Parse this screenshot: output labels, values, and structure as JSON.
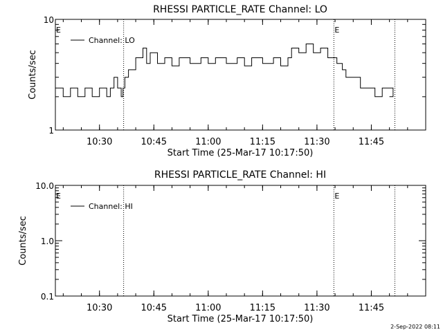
{
  "footer": {
    "timestamp": "2-Sep-2022 08:11"
  },
  "chart_data": [
    {
      "type": "line",
      "title": "RHESSI PARTICLE_RATE Channel: LO",
      "xlabel": "Start Time (25-Mar-17 10:17:50)",
      "ylabel": "Counts/sec",
      "yscale": "log",
      "xlim": [
        "10:17:50",
        "12:00:00"
      ],
      "ylim": [
        1,
        10
      ],
      "x_ticks": [
        "10:30",
        "10:45",
        "11:00",
        "11:15",
        "11:30",
        "11:45"
      ],
      "y_ticks": [
        "1",
        "10"
      ],
      "grid": false,
      "legend": {
        "entries": [
          "Channel: LO"
        ],
        "position": "top-left"
      },
      "markers": [
        {
          "time": "10:17:50",
          "label": "E",
          "line": false
        },
        {
          "time": "10:36:40",
          "label": "",
          "line": true
        },
        {
          "time": "11:34:40",
          "label": "E",
          "line": true
        },
        {
          "time": "11:51:30",
          "label": "",
          "line": true
        }
      ],
      "series": [
        {
          "name": "Channel: LO",
          "x": [
            "10:17:50",
            "10:20:00",
            "10:22:00",
            "10:24:00",
            "10:26:00",
            "10:28:00",
            "10:30:00",
            "10:32:00",
            "10:33:00",
            "10:34:00",
            "10:35:00",
            "10:36:00",
            "10:36:30",
            "10:37:00",
            "10:38:00",
            "10:40:00",
            "10:42:00",
            "10:43:00",
            "10:44:00",
            "10:46:00",
            "10:48:00",
            "10:50:00",
            "10:52:00",
            "10:55:00",
            "10:58:00",
            "11:00:00",
            "11:02:00",
            "11:05:00",
            "11:08:00",
            "11:10:00",
            "11:12:00",
            "11:15:00",
            "11:18:00",
            "11:20:00",
            "11:22:00",
            "11:23:00",
            "11:25:00",
            "11:27:00",
            "11:29:00",
            "11:31:00",
            "11:33:00",
            "11:34:30",
            "11:35:30",
            "11:37:00",
            "11:38:00",
            "11:40:00",
            "11:42:00",
            "11:44:00",
            "11:46:00",
            "11:48:00",
            "11:50:00",
            "11:51:00"
          ],
          "values": [
            2.4,
            2.0,
            2.4,
            2.0,
            2.4,
            2.0,
            2.4,
            2.0,
            2.4,
            3.0,
            2.4,
            2.0,
            2.4,
            3.0,
            3.5,
            4.5,
            5.5,
            4.0,
            5.0,
            4.0,
            4.5,
            3.8,
            4.5,
            4.0,
            4.5,
            4.0,
            4.5,
            4.0,
            4.5,
            3.8,
            4.5,
            4.0,
            4.5,
            3.8,
            4.5,
            5.5,
            5.0,
            6.0,
            5.0,
            5.5,
            4.5,
            4.5,
            4.0,
            3.5,
            3.0,
            3.0,
            2.4,
            2.4,
            2.0,
            2.4,
            2.4,
            2.0
          ]
        }
      ]
    },
    {
      "type": "line",
      "title": "RHESSI PARTICLE_RATE Channel: HI",
      "xlabel": "Start Time (25-Mar-17 10:17:50)",
      "ylabel": "Counts/sec",
      "yscale": "log",
      "xlim": [
        "10:17:50",
        "12:00:00"
      ],
      "ylim": [
        0.1,
        10.0
      ],
      "x_ticks": [
        "10:30",
        "10:45",
        "11:00",
        "11:15",
        "11:30",
        "11:45"
      ],
      "y_ticks": [
        "0.1",
        "1.0",
        "10.0"
      ],
      "grid": false,
      "legend": {
        "entries": [
          "Channel: HI"
        ],
        "position": "top-left"
      },
      "markers": [
        {
          "time": "10:17:50",
          "label": "E",
          "line": false
        },
        {
          "time": "10:36:40",
          "label": "",
          "line": true
        },
        {
          "time": "11:34:40",
          "label": "E",
          "line": true
        },
        {
          "time": "11:51:30",
          "label": "",
          "line": true
        }
      ],
      "series": [
        {
          "name": "Channel: HI",
          "x": [],
          "values": []
        }
      ]
    }
  ]
}
